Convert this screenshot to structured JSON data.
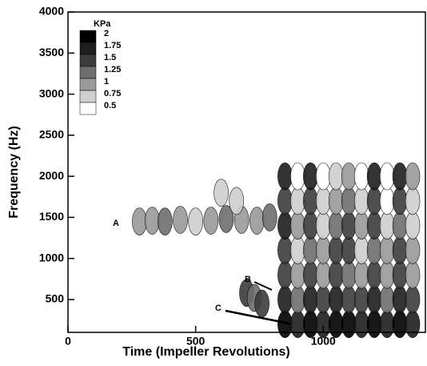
{
  "chart_data": {
    "type": "spectrogram",
    "x_label": "Time (Impeller Revolutions)",
    "y_label": "Frequency (Hz)",
    "xlim": [
      0,
      1400
    ],
    "ylim": [
      100,
      4000
    ],
    "xticks": [
      0,
      500,
      1000
    ],
    "yticks": [
      500,
      1000,
      1500,
      2000,
      2500,
      3000,
      3500,
      4000
    ],
    "legend_title": "KPa",
    "levels": [
      2,
      1.75,
      1.5,
      1.25,
      1,
      0.75,
      0.5
    ],
    "level_colors": [
      "#000000",
      "#1e1e1e",
      "#3c3c3c",
      "#6e6e6e",
      "#9a9a9a",
      "#cfcfcf",
      "#ffffff"
    ],
    "annotations": [
      "A",
      "B",
      "C"
    ],
    "x": [
      850,
      850,
      850,
      850,
      850,
      850,
      850,
      900,
      900,
      900,
      900,
      900,
      900,
      900,
      950,
      950,
      950,
      950,
      950,
      950,
      950,
      1000,
      1000,
      1000,
      1000,
      1000,
      1000,
      1000,
      1050,
      1050,
      1050,
      1050,
      1050,
      1050,
      1050,
      1100,
      1100,
      1100,
      1100,
      1100,
      1100,
      1100,
      1150,
      1150,
      1150,
      1150,
      1150,
      1150,
      1150,
      1200,
      1200,
      1200,
      1200,
      1200,
      1200,
      1200,
      1250,
      1250,
      1250,
      1250,
      1250,
      1250,
      1250,
      1300,
      1300,
      1300,
      1300,
      1300,
      1300,
      1300,
      1350,
      1350,
      1350,
      1350,
      1350,
      1350,
      1350,
      280,
      330,
      380,
      440,
      500,
      560,
      620,
      680,
      740,
      790,
      700,
      730,
      760,
      600,
      660
    ],
    "y": [
      200,
      500,
      800,
      1100,
      1400,
      1700,
      2000,
      200,
      500,
      800,
      1100,
      1400,
      1700,
      2000,
      200,
      500,
      800,
      1100,
      1400,
      1700,
      2000,
      200,
      500,
      800,
      1100,
      1400,
      1700,
      2000,
      200,
      500,
      800,
      1100,
      1400,
      1700,
      2000,
      200,
      500,
      800,
      1100,
      1400,
      1700,
      2000,
      200,
      500,
      800,
      1100,
      1400,
      1700,
      2000,
      200,
      500,
      800,
      1100,
      1400,
      1700,
      2000,
      200,
      500,
      800,
      1100,
      1400,
      1700,
      2000,
      200,
      500,
      800,
      1100,
      1400,
      1700,
      2000,
      200,
      500,
      800,
      1100,
      1400,
      1700,
      2000,
      1450,
      1460,
      1450,
      1470,
      1450,
      1460,
      1480,
      1470,
      1460,
      1500,
      580,
      520,
      450,
      1800,
      1700
    ],
    "values": [
      2,
      1.75,
      1.5,
      1.5,
      1.75,
      1.5,
      1.75,
      1.75,
      1.25,
      1,
      0.75,
      1,
      0.75,
      0.5,
      2,
      1.75,
      1.5,
      1.25,
      1.5,
      1.5,
      1.75,
      1.75,
      1.5,
      1,
      1,
      0.75,
      0.75,
      0.5,
      2,
      1.75,
      1.5,
      1.5,
      1.25,
      1,
      0.75,
      2,
      1.5,
      1.25,
      1.5,
      1.5,
      1.25,
      1,
      1.75,
      1.5,
      1,
      0.75,
      1,
      0.75,
      0.5,
      2,
      1.75,
      1.5,
      1.25,
      1.5,
      1.5,
      1.75,
      1.75,
      1.25,
      1,
      1,
      0.75,
      0.5,
      0.5,
      2,
      1.75,
      1.5,
      1.5,
      1.25,
      1.5,
      1.75,
      1.75,
      1.5,
      1,
      1,
      0.75,
      0.75,
      1,
      1,
      1,
      1.25,
      1,
      0.75,
      1,
      1.25,
      1,
      1,
      1.25,
      1.5,
      1.25,
      1.5,
      0.75,
      0.75
    ]
  }
}
